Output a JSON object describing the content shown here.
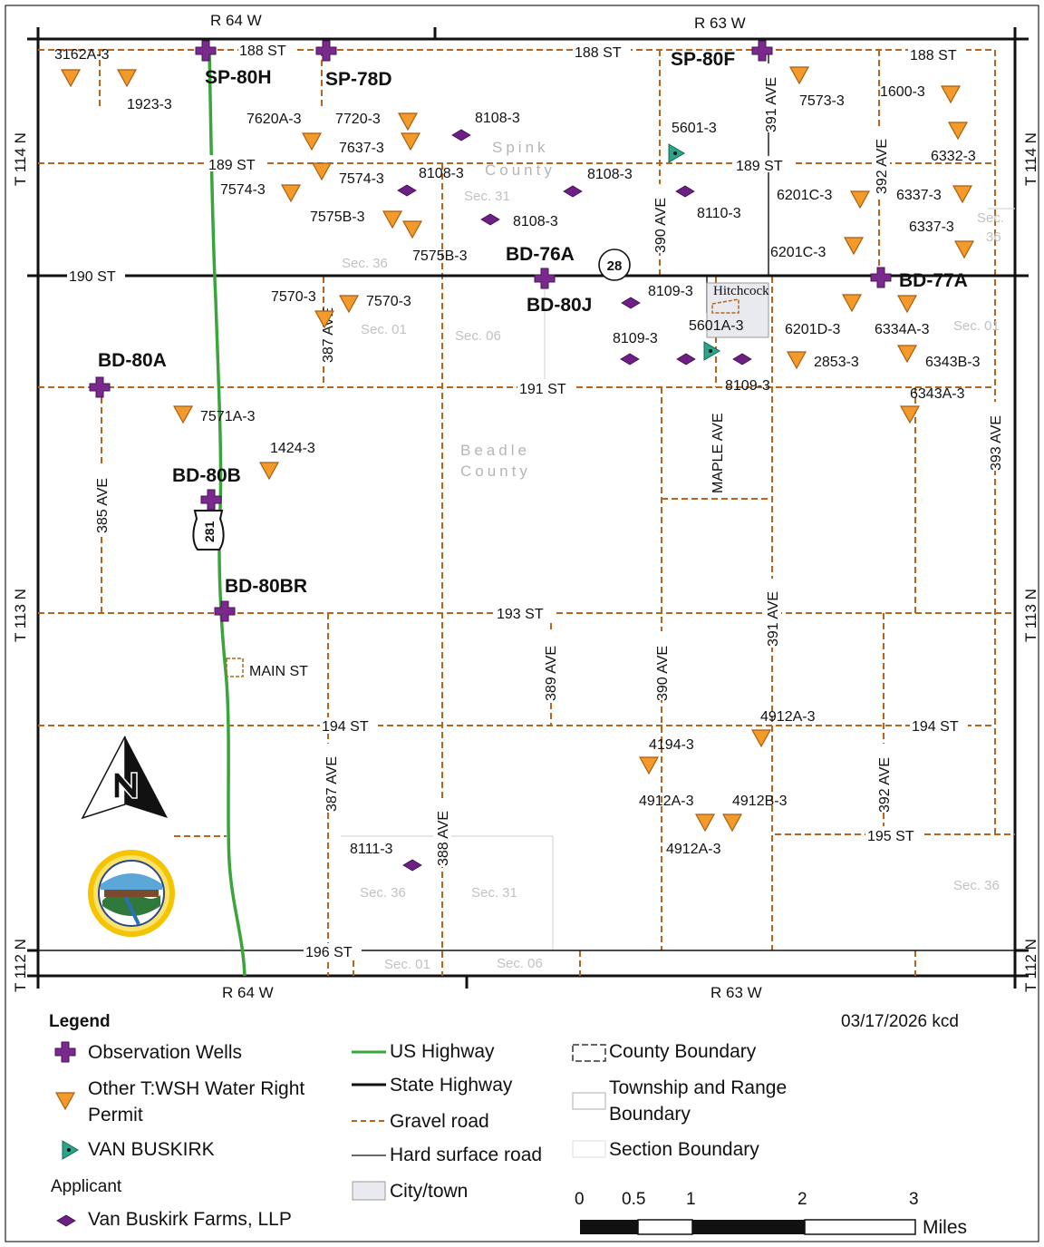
{
  "frame": {
    "range_top_left": "R 64 W",
    "range_top_right": "R 63 W",
    "range_bottom_left": "R 64 W",
    "range_bottom_right": "R 63 W",
    "township_114": "T 114 N",
    "township_113": "T 113 N",
    "township_112": "T 112 N"
  },
  "counties": {
    "spink": "Spink County",
    "beadle": "Beadle County"
  },
  "town": "Hitchcock",
  "highways": {
    "us": "281",
    "state": "28"
  },
  "roads": {
    "st188": "188 ST",
    "st189": "189 ST",
    "st190": "190 ST",
    "st191": "191 ST",
    "st193": "193 ST",
    "st194": "194 ST",
    "st195": "195 ST",
    "st196": "196 ST",
    "ave385": "385 AVE",
    "ave387": "387 AVE",
    "ave388": "388 AVE",
    "ave389": "389 AVE",
    "ave390": "390 AVE",
    "ave391": "391 AVE",
    "ave392": "392 AVE",
    "ave393": "393 AVE",
    "maple": "MAPLE AVE",
    "main": "MAIN ST"
  },
  "sections": {
    "s36": "Sec. 36",
    "s31": "Sec. 31",
    "s01": "Sec. 01",
    "s06": "Sec. 06"
  },
  "observation_wells": [
    "SP-80H",
    "SP-78D",
    "SP-80F",
    "BD-76A",
    "BD-80J",
    "BD-77A",
    "BD-80A",
    "BD-80B",
    "BD-80BR"
  ],
  "permits": [
    "3162A-3",
    "1923-3",
    "7620A-3",
    "7720-3",
    "7637-3",
    "7574-3",
    "7575B-3",
    "7573-3",
    "1600-3",
    "6332-3",
    "6201C-3",
    "6337-3",
    "7570-3",
    "6201D-3",
    "6334A-3",
    "2853-3",
    "6343B-3",
    "6343A-3",
    "7571A-3",
    "1424-3",
    "4912A-3",
    "4194-3",
    "4912B-3"
  ],
  "applicant_permits": [
    "8108-3",
    "8110-3",
    "8109-3",
    "8111-3"
  ],
  "van_buskirk": "5601-3",
  "van_buskirk_b": "5601A-3",
  "legend": {
    "title": "Legend",
    "date": "03/17/2026 kcd",
    "observation_wells": "Observation Wells",
    "other_permit_1": "Other T:WSH Water Right",
    "other_permit_2": "Permit",
    "van_buskirk": "VAN BUSKIRK",
    "applicant": "Applicant",
    "applicant_name": "Van Buskirk Farms, LLP",
    "us_highway": "US Highway",
    "state_highway": "State Highway",
    "gravel_road": "Gravel road",
    "hard_surface": "Hard surface road",
    "city_town": "City/town",
    "county_boundary": "County Boundary",
    "township_1": "Township and Range",
    "township_2": "Boundary",
    "section_boundary": "Section Boundary",
    "scale_labels": [
      "0",
      "0.5",
      "1",
      "2",
      "3"
    ],
    "scale_unit": "Miles"
  },
  "colors": {
    "gravel": "#b5651d",
    "us_highway": "#3aa53a",
    "well": "#7a2a8c",
    "permit": "#f39a2a",
    "applicant": "#6e1f86",
    "van_buskirk": "#2aa58a"
  }
}
